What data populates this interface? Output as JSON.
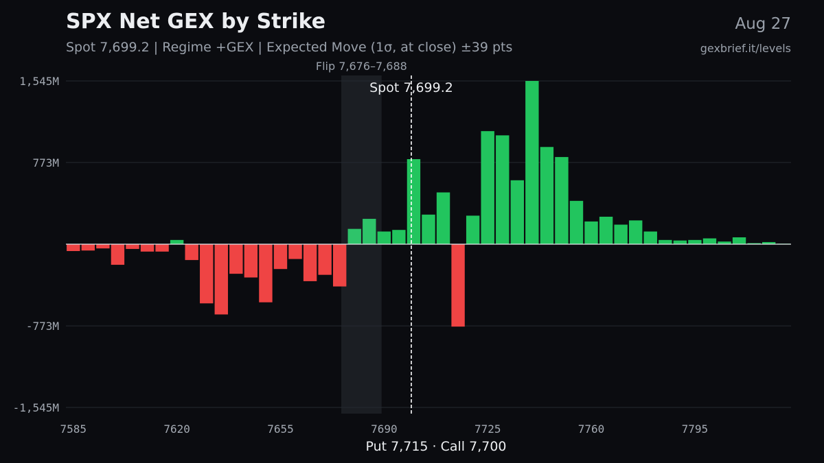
{
  "header": {
    "title": "SPX Net GEX by Strike",
    "subtitle": "Spot 7,699.2 | Regime +GEX | Expected Move (1σ, at close) ±39 pts",
    "date": "Aug 27",
    "site": "gexbrief.it/levels"
  },
  "footer": {
    "text": "Put 7,715 · Call 7,700"
  },
  "colors": {
    "background": "#0b0c10",
    "positive": "#22c55e",
    "positive_in_flip": "#2ec46a",
    "negative": "#ef4444",
    "grid": "#262a31",
    "flip_band": "#1b1e23",
    "spot_line": "#ffffff"
  },
  "chart_data": {
    "type": "bar",
    "title": "SPX Net GEX by Strike",
    "xlabel": "",
    "ylabel": "",
    "unit": "M",
    "x_ticks": [
      7585,
      7620,
      7655,
      7690,
      7725,
      7760,
      7795
    ],
    "y_ticks": [
      {
        "value": 1545,
        "label": "1,545M"
      },
      {
        "value": 773,
        "label": "773M"
      },
      {
        "value": -773,
        "label": "-773M"
      },
      {
        "value": -1545,
        "label": "-1,545M"
      }
    ],
    "ylim": [
      -1600,
      1545
    ],
    "xlim": [
      7582.5,
      7827.5
    ],
    "grid": "horizontal",
    "strikes": [
      7585,
      7590,
      7595,
      7600,
      7605,
      7610,
      7615,
      7620,
      7625,
      7630,
      7635,
      7640,
      7645,
      7650,
      7655,
      7660,
      7665,
      7670,
      7675,
      7680,
      7685,
      7690,
      7695,
      7700,
      7705,
      7710,
      7715,
      7720,
      7725,
      7730,
      7735,
      7740,
      7745,
      7750,
      7755,
      7760,
      7765,
      7770,
      7775,
      7780,
      7785,
      7790,
      7795,
      7800,
      7805,
      7810,
      7815,
      7820,
      7825
    ],
    "values": [
      -65,
      -60,
      -40,
      -195,
      -45,
      -70,
      -70,
      40,
      -150,
      -560,
      -665,
      -280,
      -315,
      -550,
      -235,
      -140,
      -350,
      -290,
      -400,
      145,
      240,
      120,
      135,
      805,
      280,
      490,
      -780,
      270,
      1070,
      1030,
      605,
      1545,
      920,
      825,
      410,
      215,
      260,
      185,
      225,
      120,
      40,
      35,
      40,
      55,
      25,
      65,
      10,
      20,
      5
    ],
    "flip_zone": {
      "from": 7676,
      "to": 7688,
      "label": "Flip 7,676–7,688"
    },
    "spot": {
      "value": 7699.2,
      "label": "Spot 7,699.2"
    },
    "put_wall": 7715,
    "call_wall": 7700
  }
}
